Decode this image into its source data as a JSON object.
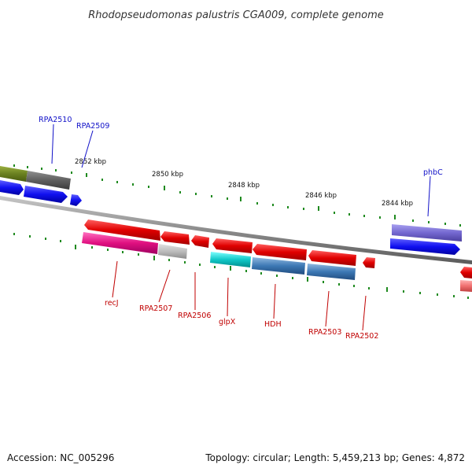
{
  "title": "Rhodopseudomonas palustris CGA009, complete genome",
  "footer": {
    "accession": "Accession: NC_005296",
    "topology": "Topology: circular; Length: 5,459,213 bp; Genes: 4,872"
  },
  "scale_labels": [
    "2852 kbp",
    "2850 kbp",
    "2848 kbp",
    "2846 kbp",
    "2844 kbp"
  ],
  "colors": {
    "backbone": "#8c8c8c",
    "tick": "#1f8a1f",
    "label_top": "#1010c8",
    "label_bottom": "#c00000"
  },
  "genes_top": [
    {
      "name": "RPA2510",
      "color": "#5a5a5a"
    },
    {
      "name": "RPA2509",
      "color": "#1a1ae6"
    },
    {
      "name": "phbC",
      "color": "#7060c8"
    }
  ],
  "genes_bottom": [
    {
      "name": "recJ",
      "color": "#e01080"
    },
    {
      "name": "RPA2507",
      "color": "#b4b4b4"
    },
    {
      "name": "RPA2506",
      "color": "#e00000"
    },
    {
      "name": "glpX",
      "color": "#10c0c0"
    },
    {
      "name": "HDH",
      "color": "#3c78b4"
    },
    {
      "name": "RPA2503",
      "color": "#3c78b4"
    },
    {
      "name": "RPA2502",
      "color": "#e00000"
    }
  ]
}
